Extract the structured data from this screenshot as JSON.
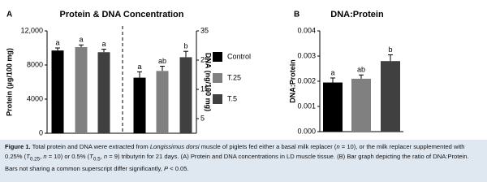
{
  "chart_data": [
    {
      "type": "bar",
      "panel": "A",
      "title": "Protein & DNA Concentration",
      "ylabel": "Protein (µg/100 mg)",
      "y2label": "DNA (ng/100 mg)",
      "ylim": [
        0,
        12000
      ],
      "yticks": [
        0,
        4000,
        8000,
        {
          "value": 12000,
          "label": "12,000"
        }
      ],
      "y2lim": [
        0,
        35
      ],
      "y2ticks": [
        5,
        15,
        25,
        35
      ],
      "value_axes": [
        "y",
        "y2"
      ],
      "series": [
        {
          "name": "Control",
          "color": "#000000",
          "values": [
            9700,
            19
          ],
          "errors": [
            300,
            2
          ],
          "letters": [
            "a",
            "a"
          ]
        },
        {
          "name": "T.25",
          "color": "#808080",
          "values": [
            10100,
            21.3
          ],
          "errors": [
            250,
            1.6
          ],
          "letters": [
            "a",
            "ab"
          ]
        },
        {
          "name": "T.5",
          "color": "#404040",
          "values": [
            9500,
            26
          ],
          "errors": [
            350,
            2
          ],
          "letters": [
            "a",
            "b"
          ]
        }
      ]
    },
    {
      "type": "bar",
      "panel": "B",
      "title": "DNA:Protein",
      "ylabel": "DNA:Protein",
      "ylim": [
        0,
        0.004
      ],
      "yticks": [
        {
          "value": 0,
          "label": "0.000"
        },
        {
          "value": 0.001,
          "label": "0.001"
        },
        {
          "value": 0.002,
          "label": "0.002"
        },
        {
          "value": 0.003,
          "label": "0.003"
        },
        {
          "value": 0.004,
          "label": "0.004"
        }
      ],
      "series": [
        {
          "name": "Control",
          "color": "#000000",
          "values": [
            0.00195
          ],
          "errors": [
            0.00018
          ],
          "letters": [
            "a"
          ]
        },
        {
          "name": "T.25",
          "color": "#808080",
          "values": [
            0.0021
          ],
          "errors": [
            0.00015
          ],
          "letters": [
            "ab"
          ]
        },
        {
          "name": "T.5",
          "color": "#404040",
          "values": [
            0.0028
          ],
          "errors": [
            0.00025
          ],
          "letters": [
            "b"
          ]
        }
      ]
    }
  ],
  "caption": {
    "parts": [
      "Figure 1.",
      " Total protein and DNA were extracted from ",
      "Longissimus dorsi",
      " muscle of piglets fed either a basal milk replacer (",
      "n",
      " = 10), or the milk replacer supplemented with 0.25% (",
      "T",
      "0.25",
      ", ",
      "n",
      " = 10) or 0.5% (",
      "T",
      "0.5",
      ", ",
      "n",
      " = 9) tributyrin for 21 days. (A) Protein and DNA concentrations in LD muscle tissue. (B) Bar graph depicting the ratio of DNA:Protein. Bars not sharing a common superscript differ significantly, ",
      "P",
      " < 0.05."
    ]
  }
}
